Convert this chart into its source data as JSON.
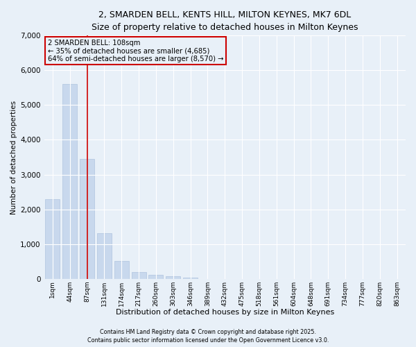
{
  "title_line1": "2, SMARDEN BELL, KENTS HILL, MILTON KEYNES, MK7 6DL",
  "title_line2": "Size of property relative to detached houses in Milton Keynes",
  "xlabel": "Distribution of detached houses by size in Milton Keynes",
  "ylabel": "Number of detached properties",
  "categories": [
    "1sqm",
    "44sqm",
    "87sqm",
    "131sqm",
    "174sqm",
    "217sqm",
    "260sqm",
    "303sqm",
    "346sqm",
    "389sqm",
    "432sqm",
    "475sqm",
    "518sqm",
    "561sqm",
    "604sqm",
    "648sqm",
    "691sqm",
    "734sqm",
    "777sqm",
    "820sqm",
    "863sqm"
  ],
  "values": [
    2300,
    5600,
    3450,
    1310,
    510,
    190,
    120,
    80,
    40,
    0,
    0,
    0,
    0,
    0,
    0,
    0,
    0,
    0,
    0,
    0,
    0
  ],
  "bar_color": "#c8d8ed",
  "bar_edge_color": "#b0c4de",
  "vline_x": 2,
  "vline_color": "#cc0000",
  "annotation_text": "2 SMARDEN BELL: 108sqm\n← 35% of detached houses are smaller (4,685)\n64% of semi-detached houses are larger (8,570) →",
  "annotation_box_color": "#cc0000",
  "footnote1": "Contains HM Land Registry data © Crown copyright and database right 2025.",
  "footnote2": "Contains public sector information licensed under the Open Government Licence v3.0.",
  "background_color": "#e8f0f8",
  "ylim": [
    0,
    7000
  ],
  "grid_color": "#ffffff"
}
